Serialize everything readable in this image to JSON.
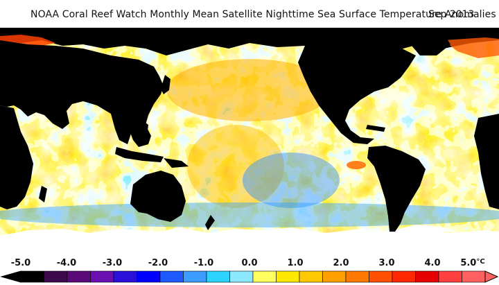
{
  "title": "NOAA Coral Reef Watch Monthly Mean Satellite Nighttime Sea Surface Temperature Anomalies",
  "date": "Sep 2013",
  "colorbar": {
    "ticks": [
      "-5.0",
      "-4.0",
      "-3.0",
      "-2.0",
      "-1.0",
      "0.0",
      "1.0",
      "2.0",
      "3.0",
      "4.0",
      "5.0"
    ],
    "unit": "°C",
    "colors": [
      "#000000",
      "#3c0a4a",
      "#5a0a78",
      "#6a0fb0",
      "#2a10d8",
      "#0000ff",
      "#1e5aff",
      "#3c9cff",
      "#2cd4ff",
      "#8ce8ff",
      "#ffff60",
      "#ffe800",
      "#ffc800",
      "#ffa000",
      "#ff7800",
      "#ff5000",
      "#ff2800",
      "#e60000",
      "#ff4040",
      "#ff6060"
    ]
  },
  "map": {
    "ocean_anomaly_palette": [
      "#0030ff",
      "#2a8cff",
      "#34d0ff",
      "#b4f0ff",
      "#ffff40",
      "#ffd400",
      "#ffb000",
      "#ff8c00",
      "#ff5000",
      "#ff2000"
    ],
    "land_color": "#000000",
    "ice_color": "#ffffff"
  }
}
